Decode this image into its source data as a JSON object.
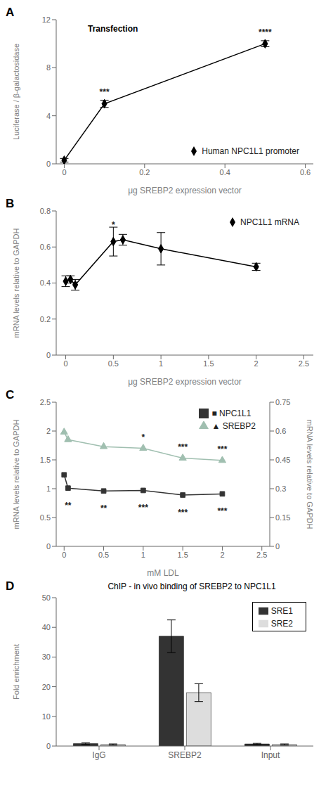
{
  "chart_data": [
    {
      "type": "line",
      "panel_label": "A",
      "x": [
        0,
        0.1,
        0.5
      ],
      "series": [
        {
          "name": "Human NPC1L1 promoter",
          "color": "#000000",
          "marker": "diamond",
          "values": [
            0.3,
            5.0,
            10.0
          ],
          "errors": [
            0.15,
            0.3,
            0.25
          ],
          "annotations": [
            {
              "x": 0.1,
              "y": 5.6,
              "text": "***"
            },
            {
              "x": 0.5,
              "y": 10.6,
              "text": "****"
            }
          ]
        }
      ],
      "xlabel": "μg SREBP2 expression vector",
      "ylabel": "Luciferase / β-galactosidase",
      "xlim": [
        -0.02,
        0.62
      ],
      "xticks": [
        0,
        0.2,
        0.4,
        0.6
      ],
      "ylim": [
        0,
        12
      ],
      "yticks": [
        0,
        4,
        8,
        12
      ],
      "legend": "lower right",
      "grid": false,
      "annotations": [
        {
          "text": "Transfection"
        }
      ]
    },
    {
      "type": "line",
      "panel_label": "B",
      "x": [
        0,
        0.05,
        0.1,
        0.5,
        0.6,
        1.0,
        2.0
      ],
      "series": [
        {
          "name": "NPC1L1 mRNA",
          "color": "#000000",
          "marker": "diamond",
          "values": [
            0.41,
            0.42,
            0.39,
            0.63,
            0.64,
            0.59,
            0.49
          ],
          "errors": [
            0.03,
            0.02,
            0.03,
            0.08,
            0.03,
            0.09,
            0.02
          ],
          "annotations": [
            {
              "x": 0.5,
              "y": 0.7,
              "text": "*"
            }
          ]
        }
      ],
      "xlabel": "μg SREBP2 expression vector",
      "ylabel": "mRNA levels relative to GAPDH",
      "xlim": [
        -0.1,
        2.6
      ],
      "xticks": [
        0,
        0.5,
        1.0,
        1.5,
        2.0,
        2.5
      ],
      "ylim": [
        0,
        0.8
      ],
      "yticks": [
        0,
        0.2,
        0.4,
        0.6,
        0.8
      ],
      "legend": "upper right",
      "grid": false
    },
    {
      "type": "line",
      "panel_label": "C",
      "x": [
        0,
        0.05,
        0.5,
        1.0,
        1.5,
        2.0
      ],
      "series": [
        {
          "name": "▲ SREBP2",
          "color": "#a0bfb0",
          "marker": "triangle",
          "values": [
            1.98,
            1.85,
            1.73,
            1.7,
            1.53,
            1.49
          ],
          "annotations": [
            {
              "x": 1.0,
              "y": 1.82,
              "text": "*"
            },
            {
              "x": 1.5,
              "y": 1.65,
              "text": "***"
            },
            {
              "x": 2.0,
              "y": 1.61,
              "text": "***"
            }
          ]
        },
        {
          "name": "■ NPC1L1",
          "color": "#333333",
          "marker": "square",
          "values": [
            1.24,
            1.01,
            0.96,
            0.97,
            0.89,
            0.91
          ],
          "annotations": [
            {
              "x": 0.05,
              "y": 0.79,
              "text": "**"
            },
            {
              "x": 0.5,
              "y": 0.74,
              "text": "**"
            },
            {
              "x": 1.0,
              "y": 0.75,
              "text": "***"
            },
            {
              "x": 1.5,
              "y": 0.67,
              "text": "***"
            },
            {
              "x": 2.0,
              "y": 0.69,
              "text": "***"
            }
          ]
        }
      ],
      "xlabel": "mM LDL",
      "ylabel": "mRNA levels relative to GAPDH",
      "y2label": "mRNA levels relative to GAPDH",
      "xlim": [
        -0.1,
        2.6
      ],
      "xticks": [
        0,
        0.5,
        1.0,
        1.5,
        2.0,
        2.5
      ],
      "ylim": [
        0,
        2.5
      ],
      "yticks": [
        0,
        0.5,
        1.0,
        1.5,
        2.0,
        2.5
      ],
      "y2lim": [
        0,
        0.75
      ],
      "y2ticks": [
        0,
        0.15,
        0.3,
        0.45,
        0.6,
        0.75
      ],
      "legend": "upper right",
      "grid": false
    },
    {
      "type": "bar",
      "panel_label": "D",
      "title": "ChIP - in vivo binding of SREBP2 to NPC1L1",
      "categories": [
        "IgG",
        "SREBP2",
        "Input"
      ],
      "series": [
        {
          "name": "SRE1",
          "color": "#333333",
          "values": [
            0.8,
            37.0,
            0.7
          ],
          "errors": [
            0.3,
            5.5,
            0.2
          ]
        },
        {
          "name": "SRE2",
          "color": "#dddddd",
          "values": [
            0.5,
            18.0,
            0.5
          ],
          "errors": [
            0.2,
            3.0,
            0.2
          ]
        }
      ],
      "ylabel": "Fold enrichment",
      "ylim": [
        0,
        50
      ],
      "yticks": [
        0,
        10,
        20,
        30,
        40,
        50
      ],
      "legend": "upper right",
      "grid": false
    }
  ]
}
